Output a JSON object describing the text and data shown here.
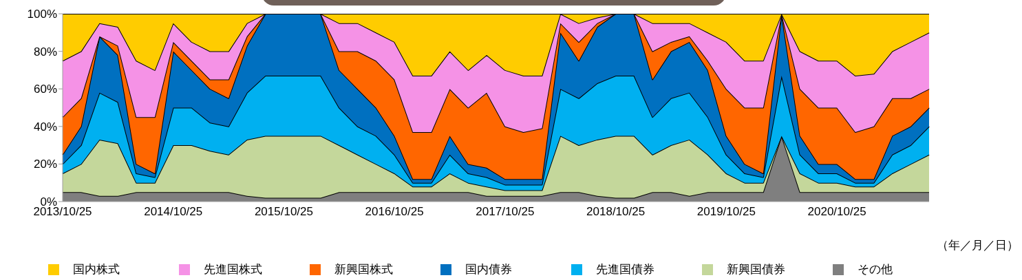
{
  "chart_data": {
    "type": "area",
    "stacked": true,
    "categories": [
      "2013/10/25",
      null,
      null,
      null,
      null,
      null,
      "2014/10/25",
      null,
      null,
      null,
      null,
      null,
      "2015/10/25",
      null,
      null,
      null,
      null,
      null,
      "2016/10/25",
      null,
      null,
      null,
      null,
      null,
      "2017/10/25",
      null,
      null,
      null,
      null,
      null,
      "2018/10/25",
      null,
      null,
      null,
      null,
      null,
      "2019/10/25",
      null,
      null,
      null,
      null,
      null,
      "2020/10/25",
      null,
      null,
      null,
      null,
      null
    ],
    "series": [
      {
        "name": "その他",
        "color": "#7f7f7f",
        "values": [
          5,
          5,
          3,
          3,
          5,
          5,
          5,
          5,
          5,
          5,
          3,
          2,
          2,
          2,
          2,
          5,
          5,
          5,
          5,
          5,
          5,
          5,
          5,
          3,
          3,
          3,
          3,
          5,
          5,
          3,
          2,
          2,
          5,
          5,
          3,
          5,
          5,
          5,
          5,
          35,
          5,
          5,
          5,
          5,
          5,
          5,
          5,
          5
        ]
      },
      {
        "name": "新興国債券",
        "color": "#c4d79b",
        "values": [
          10,
          15,
          30,
          28,
          5,
          5,
          25,
          25,
          22,
          20,
          30,
          33,
          33,
          33,
          33,
          25,
          20,
          15,
          10,
          3,
          3,
          10,
          5,
          5,
          3,
          3,
          3,
          30,
          25,
          30,
          33,
          33,
          20,
          25,
          30,
          20,
          10,
          5,
          5,
          0,
          10,
          5,
          5,
          3,
          3,
          10,
          15,
          20
        ]
      },
      {
        "name": "先進国債券",
        "color": "#00b0f0",
        "values": [
          5,
          10,
          25,
          22,
          5,
          3,
          20,
          20,
          15,
          15,
          25,
          32,
          32,
          32,
          32,
          20,
          15,
          15,
          10,
          2,
          2,
          10,
          5,
          5,
          3,
          3,
          3,
          25,
          25,
          30,
          32,
          32,
          20,
          25,
          25,
          20,
          10,
          5,
          3,
          32,
          10,
          5,
          5,
          2,
          2,
          10,
          10,
          15
        ]
      },
      {
        "name": "国内債券",
        "color": "#0070c0",
        "values": [
          5,
          10,
          30,
          25,
          5,
          2,
          30,
          20,
          18,
          15,
          25,
          33,
          33,
          33,
          33,
          20,
          20,
          15,
          10,
          2,
          2,
          10,
          5,
          5,
          3,
          3,
          3,
          30,
          20,
          30,
          33,
          33,
          20,
          25,
          27,
          25,
          10,
          5,
          2,
          33,
          10,
          5,
          5,
          2,
          2,
          10,
          10,
          10
        ]
      },
      {
        "name": "新興国株式",
        "color": "#ff6600",
        "values": [
          20,
          15,
          0,
          5,
          25,
          30,
          5,
          5,
          5,
          10,
          5,
          0,
          0,
          0,
          0,
          10,
          20,
          25,
          30,
          25,
          25,
          25,
          30,
          40,
          28,
          25,
          27,
          5,
          10,
          2,
          0,
          0,
          15,
          5,
          3,
          5,
          25,
          30,
          35,
          0,
          25,
          30,
          30,
          25,
          28,
          20,
          15,
          10
        ]
      },
      {
        "name": "先進国株式",
        "color": "#f592e6",
        "values": [
          30,
          25,
          7,
          10,
          30,
          25,
          10,
          10,
          15,
          15,
          7,
          0,
          0,
          0,
          0,
          15,
          15,
          15,
          20,
          30,
          30,
          20,
          20,
          20,
          30,
          30,
          28,
          5,
          10,
          3,
          0,
          0,
          15,
          10,
          7,
          15,
          25,
          25,
          25,
          0,
          20,
          25,
          25,
          30,
          28,
          25,
          30,
          30
        ]
      },
      {
        "name": "国内株式",
        "color": "#ffcc00",
        "values": [
          25,
          20,
          5,
          7,
          25,
          30,
          5,
          15,
          20,
          20,
          5,
          0,
          0,
          0,
          0,
          5,
          5,
          10,
          15,
          33,
          33,
          20,
          30,
          22,
          30,
          33,
          33,
          0,
          5,
          2,
          0,
          0,
          5,
          5,
          5,
          10,
          15,
          25,
          25,
          0,
          20,
          25,
          25,
          33,
          32,
          20,
          15,
          10
        ]
      }
    ],
    "ylim": [
      0,
      100
    ],
    "yticks": [
      {
        "value": 0,
        "label": "0%"
      },
      {
        "value": 20,
        "label": "20%"
      },
      {
        "value": 40,
        "label": "40%"
      },
      {
        "value": 60,
        "label": "60%"
      },
      {
        "value": 80,
        "label": "80%"
      },
      {
        "value": 100,
        "label": "100%"
      }
    ],
    "legend": "bottom",
    "annotations": [
      "（年／月／日）"
    ]
  }
}
